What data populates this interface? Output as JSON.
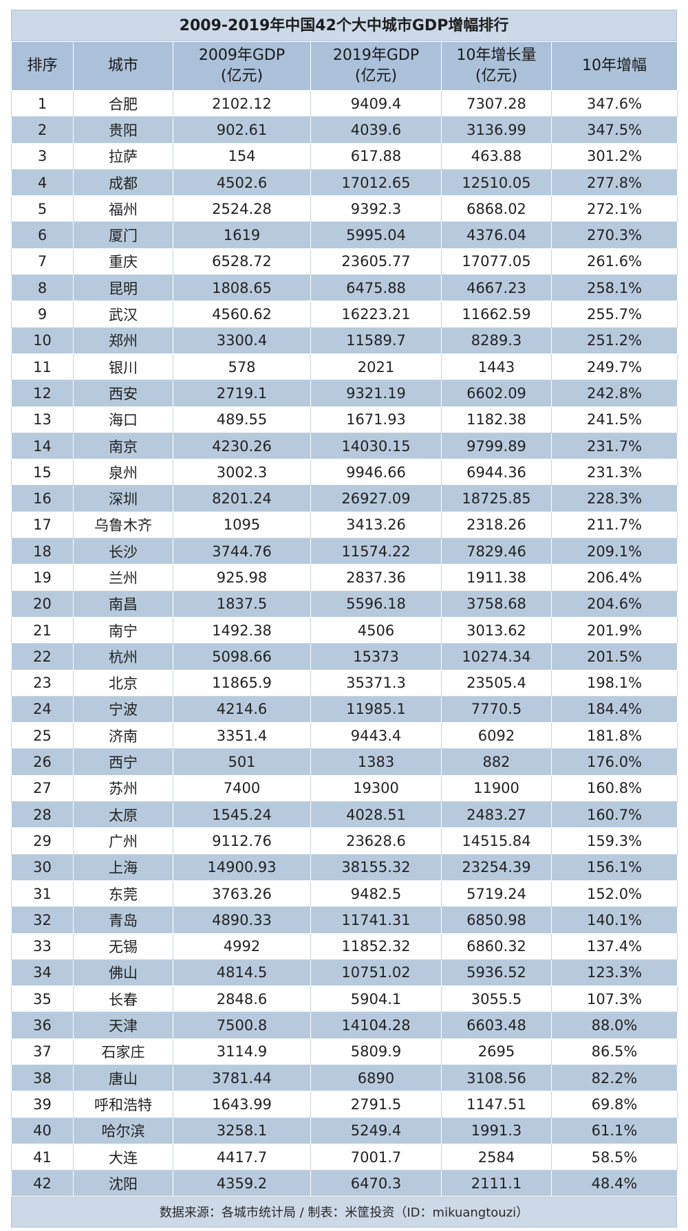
{
  "title": "2009-2019年中国42个大中城市GDP增幅排行",
  "headers": {
    "rank": "排序",
    "city": "城市",
    "gdp2009": [
      "2009年GDP",
      "(亿元)"
    ],
    "gdp2019": [
      "2019年GDP",
      "(亿元)"
    ],
    "growth": [
      "10年增长量",
      "(亿元)"
    ],
    "rate": "10年增幅"
  },
  "rows": [
    [
      "1",
      "合肥",
      "2102.12",
      "9409.4",
      "7307.28",
      "347.6%"
    ],
    [
      "2",
      "贵阳",
      "902.61",
      "4039.6",
      "3136.99",
      "347.5%"
    ],
    [
      "3",
      "拉萨",
      "154",
      "617.88",
      "463.88",
      "301.2%"
    ],
    [
      "4",
      "成都",
      "4502.6",
      "17012.65",
      "12510.05",
      "277.8%"
    ],
    [
      "5",
      "福州",
      "2524.28",
      "9392.3",
      "6868.02",
      "272.1%"
    ],
    [
      "6",
      "厦门",
      "1619",
      "5995.04",
      "4376.04",
      "270.3%"
    ],
    [
      "7",
      "重庆",
      "6528.72",
      "23605.77",
      "17077.05",
      "261.6%"
    ],
    [
      "8",
      "昆明",
      "1808.65",
      "6475.88",
      "4667.23",
      "258.1%"
    ],
    [
      "9",
      "武汉",
      "4560.62",
      "16223.21",
      "11662.59",
      "255.7%"
    ],
    [
      "10",
      "郑州",
      "3300.4",
      "11589.7",
      "8289.3",
      "251.2%"
    ],
    [
      "11",
      "银川",
      "578",
      "2021",
      "1443",
      "249.7%"
    ],
    [
      "12",
      "西安",
      "2719.1",
      "9321.19",
      "6602.09",
      "242.8%"
    ],
    [
      "13",
      "海口",
      "489.55",
      "1671.93",
      "1182.38",
      "241.5%"
    ],
    [
      "14",
      "南京",
      "4230.26",
      "14030.15",
      "9799.89",
      "231.7%"
    ],
    [
      "15",
      "泉州",
      "3002.3",
      "9946.66",
      "6944.36",
      "231.3%"
    ],
    [
      "16",
      "深圳",
      "8201.24",
      "26927.09",
      "18725.85",
      "228.3%"
    ],
    [
      "17",
      "乌鲁木齐",
      "1095",
      "3413.26",
      "2318.26",
      "211.7%"
    ],
    [
      "18",
      "长沙",
      "3744.76",
      "11574.22",
      "7829.46",
      "209.1%"
    ],
    [
      "19",
      "兰州",
      "925.98",
      "2837.36",
      "1911.38",
      "206.4%"
    ],
    [
      "20",
      "南昌",
      "1837.5",
      "5596.18",
      "3758.68",
      "204.6%"
    ],
    [
      "21",
      "南宁",
      "1492.38",
      "4506",
      "3013.62",
      "201.9%"
    ],
    [
      "22",
      "杭州",
      "5098.66",
      "15373",
      "10274.34",
      "201.5%"
    ],
    [
      "23",
      "北京",
      "11865.9",
      "35371.3",
      "23505.4",
      "198.1%"
    ],
    [
      "24",
      "宁波",
      "4214.6",
      "11985.1",
      "7770.5",
      "184.4%"
    ],
    [
      "25",
      "济南",
      "3351.4",
      "9443.4",
      "6092",
      "181.8%"
    ],
    [
      "26",
      "西宁",
      "501",
      "1383",
      "882",
      "176.0%"
    ],
    [
      "27",
      "苏州",
      "7400",
      "19300",
      "11900",
      "160.8%"
    ],
    [
      "28",
      "太原",
      "1545.24",
      "4028.51",
      "2483.27",
      "160.7%"
    ],
    [
      "29",
      "广州",
      "9112.76",
      "23628.6",
      "14515.84",
      "159.3%"
    ],
    [
      "30",
      "上海",
      "14900.93",
      "38155.32",
      "23254.39",
      "156.1%"
    ],
    [
      "31",
      "东莞",
      "3763.26",
      "9482.5",
      "5719.24",
      "152.0%"
    ],
    [
      "32",
      "青岛",
      "4890.33",
      "11741.31",
      "6850.98",
      "140.1%"
    ],
    [
      "33",
      "无锡",
      "4992",
      "11852.32",
      "6860.32",
      "137.4%"
    ],
    [
      "34",
      "佛山",
      "4814.5",
      "10751.02",
      "5936.52",
      "123.3%"
    ],
    [
      "35",
      "长春",
      "2848.6",
      "5904.1",
      "3055.5",
      "107.3%"
    ],
    [
      "36",
      "天津",
      "7500.8",
      "14104.28",
      "6603.48",
      "88.0%"
    ],
    [
      "37",
      "石家庄",
      "3114.9",
      "5809.9",
      "2695",
      "86.5%"
    ],
    [
      "38",
      "唐山",
      "3781.44",
      "6890",
      "3108.56",
      "82.2%"
    ],
    [
      "39",
      "呼和浩特",
      "1643.99",
      "2791.5",
      "1147.51",
      "69.8%"
    ],
    [
      "40",
      "哈尔滨",
      "3258.1",
      "5249.4",
      "1991.3",
      "61.1%"
    ],
    [
      "41",
      "大连",
      "4417.7",
      "7001.7",
      "2584",
      "58.5%"
    ],
    [
      "42",
      "沈阳",
      "4359.2",
      "6470.3",
      "2111.1",
      "48.4%"
    ]
  ],
  "footer": "数据来源：各城市统计局 / 制表：米筐投资（ID：mikuangtouzi）"
}
